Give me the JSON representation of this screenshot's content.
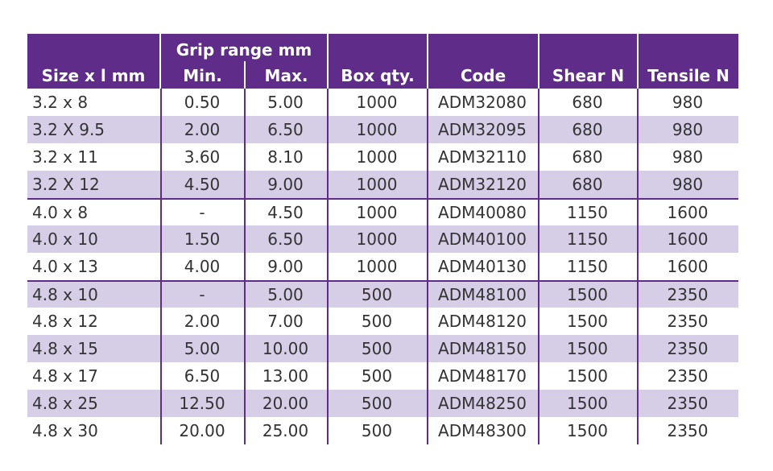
{
  "header": {
    "size": "Size x l mm",
    "grip_range": "Grip range mm",
    "min": "Min.",
    "max": "Max.",
    "box_qty": "Box qty.",
    "code": "Code",
    "shear": "Shear N",
    "tensile": "Tensile N"
  },
  "rows": [
    [
      "3.2 x 8",
      "0.50",
      "5.00",
      "1000",
      "ADM32080",
      "680",
      "980"
    ],
    [
      "3.2 X 9.5",
      "2.00",
      "6.50",
      "1000",
      "ADM32095",
      "680",
      "980"
    ],
    [
      "3.2 x 11",
      "3.60",
      "8.10",
      "1000",
      "ADM32110",
      "680",
      "980"
    ],
    [
      "3.2 X 12",
      "4.50",
      "9.00",
      "1000",
      "ADM32120",
      "680",
      "980"
    ],
    [
      "4.0 x 8",
      "-",
      "4.50",
      "1000",
      "ADM40080",
      "1150",
      "1600"
    ],
    [
      "4.0 x 10",
      "1.50",
      "6.50",
      "1000",
      "ADM40100",
      "1150",
      "1600"
    ],
    [
      "4.0 x 13",
      "4.00",
      "9.00",
      "1000",
      "ADM40130",
      "1150",
      "1600"
    ],
    [
      "4.8 x 10",
      "-",
      "5.00",
      "500",
      "ADM48100",
      "1500",
      "2350"
    ],
    [
      "4.8 x 12",
      "2.00",
      "7.00",
      "500",
      "ADM48120",
      "1500",
      "2350"
    ],
    [
      "4.8 x 15",
      "5.00",
      "10.00",
      "500",
      "ADM48150",
      "1500",
      "2350"
    ],
    [
      "4.8 x 17",
      "6.50",
      "13.00",
      "500",
      "ADM48170",
      "1500",
      "2350"
    ],
    [
      "4.8 x 25",
      "12.50",
      "20.00",
      "500",
      "ADM48250",
      "1500",
      "2350"
    ],
    [
      "4.8 x 30",
      "20.00",
      "25.00",
      "500",
      "ADM48300",
      "1500",
      "2350"
    ]
  ],
  "colors": {
    "header": "#5f2c8a",
    "stripe": "#d6cde7"
  }
}
